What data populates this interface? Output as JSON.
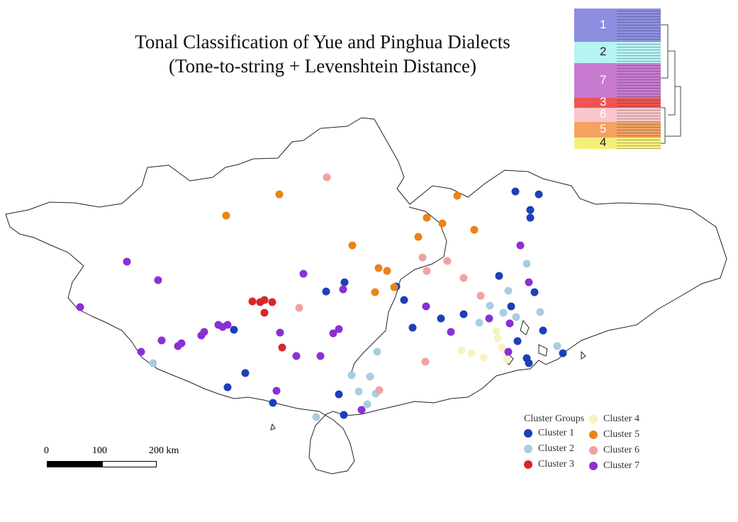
{
  "title": {
    "line1": "Tonal Classification of Yue and Pinghua Dialects",
    "line2": "(Tone-to-string + Levenshtein Distance)"
  },
  "colors": {
    "cluster1": "#1c40b8",
    "cluster2": "#a9cde0",
    "cluster3": "#d9262b",
    "cluster4": "#f8f2be",
    "cluster5": "#e98418",
    "cluster6": "#f0a2a2",
    "cluster7": "#8b2fd6",
    "boundary": "#222222"
  },
  "legend": {
    "title": "Cluster Groups",
    "items": [
      {
        "label": "Cluster 1",
        "color": "#1c40b8"
      },
      {
        "label": "Cluster 2",
        "color": "#a9cde0"
      },
      {
        "label": "Cluster 3",
        "color": "#d9262b"
      },
      {
        "label": "Cluster 4",
        "color": "#f8f2be"
      },
      {
        "label": "Cluster 5",
        "color": "#e98418"
      },
      {
        "label": "Cluster 6",
        "color": "#f0a2a2"
      },
      {
        "label": "Cluster 7",
        "color": "#8b2fd6"
      }
    ]
  },
  "scale_bar": {
    "labels": [
      "0",
      "100",
      "200 km"
    ]
  },
  "dendrogram": {
    "bands": [
      {
        "label": "1",
        "color": "#8c8ee0"
      },
      {
        "label": "2",
        "color": "#b6f3f3"
      },
      {
        "label": "7",
        "color": "#c77ad0"
      },
      {
        "label": "3",
        "color": "#ee5454"
      },
      {
        "label": "6",
        "color": "#f8c6cc"
      },
      {
        "label": "5",
        "color": "#f4a262"
      },
      {
        "label": "4",
        "color": "#f6f07a"
      }
    ]
  }
}
